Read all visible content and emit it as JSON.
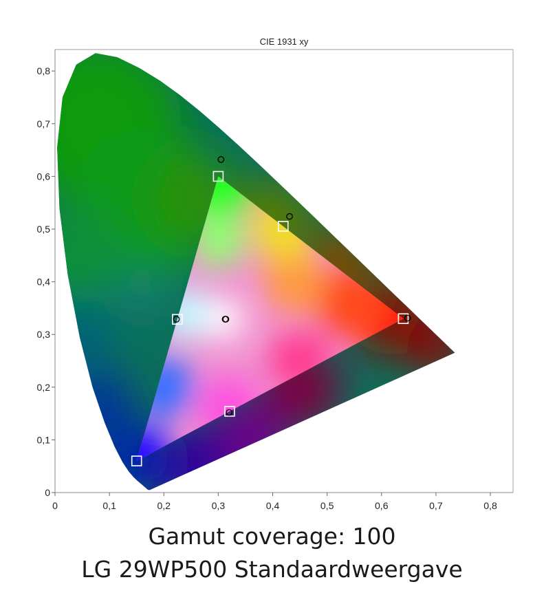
{
  "chart_data": {
    "type": "scatter",
    "title": "CIE 1931 xy",
    "xlabel": "",
    "ylabel": "",
    "xlim": [
      0,
      0.845
    ],
    "ylim": [
      0,
      0.845
    ],
    "x_ticks": [
      "0",
      "0,1",
      "0,2",
      "0,3",
      "0,4",
      "0,5",
      "0,6",
      "0,7",
      "0,8"
    ],
    "y_ticks": [
      "0",
      "0,1",
      "0,2",
      "0,3",
      "0,4",
      "0,5",
      "0,6",
      "0,7",
      "0,8"
    ],
    "grid": false,
    "series": [
      {
        "marker": "square",
        "color": "#ffffff",
        "points": [
          {
            "x": 0.64,
            "y": 0.33
          },
          {
            "x": 0.3,
            "y": 0.6
          },
          {
            "x": 0.15,
            "y": 0.06
          },
          {
            "x": 0.2247,
            "y": 0.3287
          },
          {
            "x": 0.3209,
            "y": 0.1542
          },
          {
            "x": 0.4193,
            "y": 0.5053
          }
        ]
      },
      {
        "marker": "circle",
        "color": "#000000",
        "points": [
          {
            "x": 0.648,
            "y": 0.331
          },
          {
            "x": 0.305,
            "y": 0.632
          },
          {
            "x": 0.223,
            "y": 0.329
          },
          {
            "x": 0.32,
            "y": 0.152
          },
          {
            "x": 0.431,
            "y": 0.524
          },
          {
            "x": 0.314,
            "y": 0.329
          },
          {
            "x": 0.3127,
            "y": 0.329
          }
        ]
      }
    ],
    "gamut_triangle": [
      [
        0.64,
        0.33
      ],
      [
        0.3,
        0.6
      ],
      [
        0.15,
        0.06
      ]
    ],
    "white_point": [
      0.3127,
      0.329
    ]
  },
  "captions": {
    "line1": "Gamut coverage: 100",
    "line2": "LG 29WP500 Standaardweergave"
  }
}
